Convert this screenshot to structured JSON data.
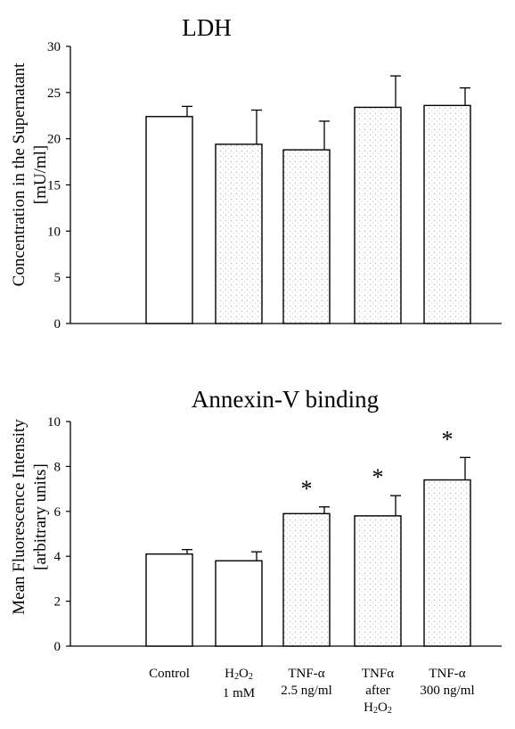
{
  "chart_data": [
    {
      "type": "bar",
      "title": "LDH",
      "ylabel": [
        "Concentration in the Supernatant",
        "[mU/ml]"
      ],
      "ylim": [
        0,
        30
      ],
      "yticks": [
        0,
        5,
        10,
        15,
        20,
        25,
        30
      ],
      "categories": [
        "Control",
        "H2O2 1 mM",
        "TNF-α 2.5 ng/ml",
        "TNFα after H2O2",
        "TNF-α 300 ng/ml"
      ],
      "values": [
        22.4,
        19.4,
        18.8,
        23.4,
        23.6
      ],
      "error": [
        1.1,
        3.7,
        3.1,
        3.4,
        1.9
      ],
      "significant": [
        false,
        false,
        false,
        false,
        false
      ],
      "bar_fill": [
        "plain",
        "stippled",
        "stippled",
        "stippled",
        "stippled"
      ]
    },
    {
      "type": "bar",
      "title": "Annexin-V binding",
      "ylabel": [
        "Mean Fluorescence Intensity",
        "[arbitrary units]"
      ],
      "ylim": [
        0,
        10
      ],
      "yticks": [
        0,
        2,
        4,
        6,
        8,
        10
      ],
      "categories": [
        "Control",
        "H2O2 1 mM",
        "TNF-α 2.5 ng/ml",
        "TNFα after H2O2",
        "TNF-α 300 ng/ml"
      ],
      "values": [
        4.1,
        3.8,
        5.9,
        5.8,
        7.4
      ],
      "error": [
        0.2,
        0.4,
        0.3,
        0.9,
        1.0
      ],
      "significant": [
        false,
        false,
        true,
        true,
        true
      ],
      "significance_marker": "*",
      "bar_fill": [
        "plain",
        "plain",
        "stippled",
        "stippled",
        "stippled"
      ]
    }
  ],
  "x_axis_labels": [
    {
      "lines": [
        "Control"
      ]
    },
    {
      "lines": [
        "H<sub>2</sub>O<sub>2</sub>",
        "1 mM"
      ],
      "text": "H2O2 1 mM"
    },
    {
      "lines": [
        "TNF-α",
        "2.5 ng/ml"
      ]
    },
    {
      "lines": [
        "TNFα",
        "after",
        "H<sub>2</sub>O<sub>2</sub>"
      ],
      "text": "TNFα after H2O2"
    },
    {
      "lines": [
        "TNF-α",
        "300 ng/ml"
      ]
    }
  ],
  "colors": {
    "ink": "#000000",
    "bar": "#ffffff",
    "stipple": "#bdbdbd"
  }
}
